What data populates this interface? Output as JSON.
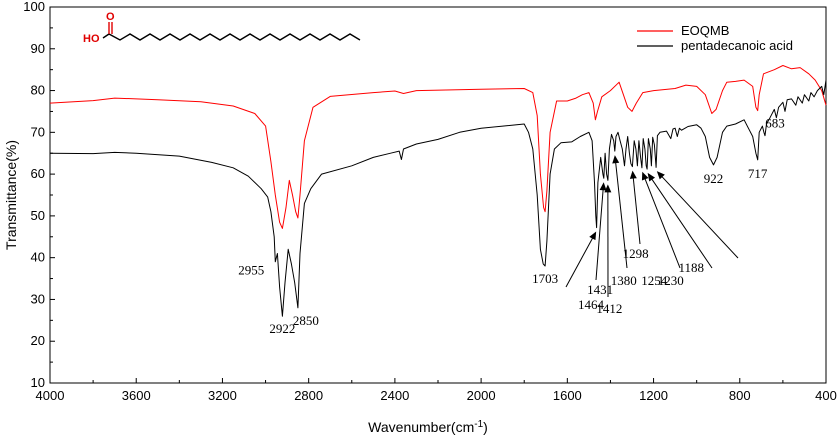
{
  "chart_data": {
    "type": "line",
    "xlabel": "Wavenumber(cm",
    "xlabel_sup": "-1",
    "xlabel_end": ")",
    "ylabel": "Transmittance(%)",
    "xlim": [
      4000,
      400
    ],
    "ylim": [
      10,
      100
    ],
    "x_ticks": [
      4000,
      3600,
      3200,
      2800,
      2400,
      2000,
      1600,
      1200,
      800,
      400
    ],
    "y_ticks": [
      10,
      20,
      30,
      40,
      50,
      60,
      70,
      80,
      90,
      100
    ],
    "grid": false,
    "legend_position": "top-right",
    "molecule_labels": {
      "oxygen": "O",
      "hydroxyl": "HO"
    },
    "series": [
      {
        "name": "EOQMB",
        "color": "#ff0000",
        "points": [
          [
            4000,
            77
          ],
          [
            3800,
            77.6
          ],
          [
            3700,
            78.2
          ],
          [
            3500,
            77.8
          ],
          [
            3300,
            77.3
          ],
          [
            3150,
            76.3
          ],
          [
            3050,
            74.5
          ],
          [
            3000,
            71.5
          ],
          [
            2975,
            63
          ],
          [
            2955,
            55
          ],
          [
            2935,
            48.5
          ],
          [
            2922,
            47
          ],
          [
            2905,
            52
          ],
          [
            2890,
            58.5
          ],
          [
            2875,
            55
          ],
          [
            2860,
            51
          ],
          [
            2850,
            49.5
          ],
          [
            2840,
            55
          ],
          [
            2820,
            68
          ],
          [
            2780,
            76
          ],
          [
            2700,
            78.6
          ],
          [
            2500,
            79.5
          ],
          [
            2400,
            79.9
          ],
          [
            2360,
            79.3
          ],
          [
            2300,
            80
          ],
          [
            2000,
            80.3
          ],
          [
            1800,
            80.5
          ],
          [
            1760,
            79.5
          ],
          [
            1740,
            74
          ],
          [
            1725,
            60
          ],
          [
            1710,
            52
          ],
          [
            1703,
            51
          ],
          [
            1695,
            56
          ],
          [
            1680,
            70
          ],
          [
            1650,
            77.5
          ],
          [
            1600,
            77.5
          ],
          [
            1560,
            78.2
          ],
          [
            1530,
            79
          ],
          [
            1500,
            79.5
          ],
          [
            1480,
            77
          ],
          [
            1470,
            73
          ],
          [
            1460,
            75
          ],
          [
            1440,
            78.5
          ],
          [
            1400,
            80
          ],
          [
            1360,
            82
          ],
          [
            1340,
            79
          ],
          [
            1320,
            76
          ],
          [
            1300,
            75
          ],
          [
            1280,
            77
          ],
          [
            1250,
            79.5
          ],
          [
            1200,
            80
          ],
          [
            1100,
            80.5
          ],
          [
            1050,
            81.3
          ],
          [
            1000,
            81
          ],
          [
            960,
            79
          ],
          [
            930,
            74.5
          ],
          [
            910,
            75.5
          ],
          [
            880,
            80
          ],
          [
            860,
            82
          ],
          [
            820,
            82.2
          ],
          [
            780,
            82.5
          ],
          [
            740,
            81
          ],
          [
            725,
            76
          ],
          [
            717,
            75.2
          ],
          [
            710,
            79
          ],
          [
            690,
            84
          ],
          [
            640,
            85
          ],
          [
            600,
            86
          ],
          [
            560,
            85.2
          ],
          [
            520,
            85.5
          ],
          [
            480,
            84
          ],
          [
            450,
            82.5
          ],
          [
            420,
            80
          ],
          [
            400,
            76.5
          ]
        ]
      },
      {
        "name": "pentadecanoic acid",
        "color": "#000000",
        "points": [
          [
            4000,
            65
          ],
          [
            3800,
            64.9
          ],
          [
            3700,
            65.2
          ],
          [
            3600,
            65
          ],
          [
            3400,
            64.3
          ],
          [
            3250,
            62.8
          ],
          [
            3150,
            61.5
          ],
          [
            3080,
            59.5
          ],
          [
            3020,
            56.5
          ],
          [
            2990,
            54.5
          ],
          [
            2975,
            51
          ],
          [
            2960,
            45
          ],
          [
            2955,
            39
          ],
          [
            2945,
            41
          ],
          [
            2935,
            33
          ],
          [
            2922,
            26
          ],
          [
            2910,
            34
          ],
          [
            2895,
            42
          ],
          [
            2880,
            38.5
          ],
          [
            2865,
            34
          ],
          [
            2850,
            28
          ],
          [
            2840,
            41
          ],
          [
            2820,
            53
          ],
          [
            2790,
            56.5
          ],
          [
            2740,
            60
          ],
          [
            2600,
            62
          ],
          [
            2500,
            64
          ],
          [
            2420,
            65
          ],
          [
            2380,
            65.5
          ],
          [
            2370,
            63.5
          ],
          [
            2360,
            66
          ],
          [
            2300,
            67.2
          ],
          [
            2200,
            68.3
          ],
          [
            2100,
            70
          ],
          [
            2000,
            71
          ],
          [
            1900,
            71.5
          ],
          [
            1800,
            72
          ],
          [
            1780,
            70
          ],
          [
            1760,
            66
          ],
          [
            1740,
            55
          ],
          [
            1725,
            42
          ],
          [
            1712,
            38.5
          ],
          [
            1703,
            38
          ],
          [
            1695,
            44
          ],
          [
            1680,
            60
          ],
          [
            1660,
            66
          ],
          [
            1630,
            67.5
          ],
          [
            1580,
            67.7
          ],
          [
            1540,
            69
          ],
          [
            1500,
            70
          ],
          [
            1485,
            68
          ],
          [
            1474,
            58
          ],
          [
            1468,
            50
          ],
          [
            1464,
            47.2
          ],
          [
            1458,
            58
          ],
          [
            1445,
            64
          ],
          [
            1435,
            60
          ],
          [
            1431,
            59
          ],
          [
            1425,
            65
          ],
          [
            1418,
            60
          ],
          [
            1412,
            58.5
          ],
          [
            1405,
            66
          ],
          [
            1395,
            69.5
          ],
          [
            1385,
            68
          ],
          [
            1380,
            65.5
          ],
          [
            1374,
            69
          ],
          [
            1365,
            70
          ],
          [
            1355,
            68
          ],
          [
            1345,
            66
          ],
          [
            1335,
            62
          ],
          [
            1328,
            66
          ],
          [
            1320,
            69
          ],
          [
            1312,
            65
          ],
          [
            1305,
            62.5
          ],
          [
            1298,
            61.8
          ],
          [
            1290,
            68
          ],
          [
            1282,
            66
          ],
          [
            1275,
            62
          ],
          [
            1268,
            68
          ],
          [
            1260,
            64
          ],
          [
            1254,
            61.5
          ],
          [
            1248,
            68.5
          ],
          [
            1240,
            66
          ],
          [
            1234,
            62
          ],
          [
            1230,
            61.2
          ],
          [
            1224,
            68.5
          ],
          [
            1215,
            66
          ],
          [
            1210,
            62
          ],
          [
            1204,
            68.8
          ],
          [
            1196,
            67
          ],
          [
            1188,
            61.6
          ],
          [
            1182,
            69.2
          ],
          [
            1170,
            70
          ],
          [
            1140,
            70.3
          ],
          [
            1120,
            68.5
          ],
          [
            1110,
            70.8
          ],
          [
            1100,
            71
          ],
          [
            1090,
            69
          ],
          [
            1080,
            71
          ],
          [
            1070,
            70.5
          ],
          [
            1040,
            71.4
          ],
          [
            1000,
            71.8
          ],
          [
            980,
            71
          ],
          [
            960,
            69
          ],
          [
            940,
            64
          ],
          [
            922,
            62.2
          ],
          [
            905,
            64
          ],
          [
            880,
            70
          ],
          [
            860,
            71.5
          ],
          [
            820,
            72
          ],
          [
            780,
            73
          ],
          [
            760,
            71
          ],
          [
            740,
            69
          ],
          [
            725,
            65
          ],
          [
            717,
            63.4
          ],
          [
            710,
            70
          ],
          [
            695,
            71.5
          ],
          [
            688,
            70
          ],
          [
            683,
            69.2
          ],
          [
            676,
            72
          ],
          [
            660,
            73.5
          ],
          [
            640,
            75.5
          ],
          [
            630,
            73.5
          ],
          [
            620,
            76
          ],
          [
            600,
            77.2
          ],
          [
            590,
            75
          ],
          [
            580,
            77.8
          ],
          [
            560,
            78
          ],
          [
            540,
            76.5
          ],
          [
            530,
            78.5
          ],
          [
            510,
            77
          ],
          [
            500,
            79
          ],
          [
            480,
            77.5
          ],
          [
            470,
            79.5
          ],
          [
            455,
            78.5
          ],
          [
            440,
            80
          ],
          [
            420,
            81
          ],
          [
            410,
            79
          ],
          [
            400,
            82.5
          ]
        ]
      }
    ],
    "annotations": [
      {
        "text": "2955",
        "x": 2955,
        "y": 40
      },
      {
        "text": "2922",
        "x": 2922,
        "y": 26
      },
      {
        "text": "2850",
        "x": 2850,
        "y": 28
      },
      {
        "text": "1703",
        "x": 1703,
        "y": 38
      },
      {
        "text": "922",
        "x": 922,
        "y": 62.2
      },
      {
        "text": "717",
        "x": 717,
        "y": 63.4
      },
      {
        "text": "683",
        "x": 683,
        "y": 69.2
      },
      {
        "text": "1464",
        "x": 1464,
        "y": 47.2,
        "arrow": true
      },
      {
        "text": "1431",
        "x": 1431,
        "y": 59,
        "arrow": true
      },
      {
        "text": "1412",
        "x": 1412,
        "y": 58.5,
        "arrow": true
      },
      {
        "text": "1380",
        "x": 1380,
        "y": 65.5,
        "arrow": true
      },
      {
        "text": "1298",
        "x": 1298,
        "y": 61.8,
        "arrow": true
      },
      {
        "text": "1254",
        "x": 1254,
        "y": 61.5,
        "arrow": true
      },
      {
        "text": "1230",
        "x": 1230,
        "y": 61.2,
        "arrow": true
      },
      {
        "text": "1188",
        "x": 1188,
        "y": 61.6,
        "arrow": true
      }
    ]
  }
}
